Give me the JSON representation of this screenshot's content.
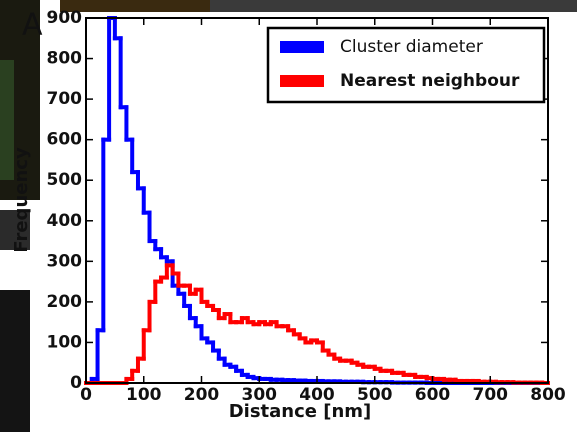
{
  "chart_data": {
    "type": "histogram",
    "panel_label": "A",
    "xlabel": "Distance [nm]",
    "ylabel": "Frequency",
    "bins": [
      0,
      10,
      20,
      30,
      40,
      50,
      60,
      70,
      80,
      90,
      100,
      110,
      120,
      130,
      140,
      150,
      160,
      170,
      180,
      190,
      200,
      210,
      220,
      230,
      240,
      250,
      260,
      270,
      280,
      290,
      300,
      310,
      320,
      330,
      340,
      350,
      360,
      370,
      380,
      390,
      400,
      410,
      420,
      430,
      440,
      450,
      460,
      470,
      480,
      490,
      500,
      510,
      520,
      530,
      540,
      550,
      560,
      570,
      580,
      590,
      600,
      610,
      620,
      630,
      640,
      650,
      660,
      670,
      680,
      690,
      700,
      710,
      720,
      730,
      740,
      750,
      760,
      770,
      780,
      790,
      800
    ],
    "series": [
      {
        "name": "Cluster diameter",
        "color": "#0000ff",
        "values": [
          0,
          10,
          130,
          600,
          900,
          850,
          680,
          600,
          520,
          480,
          420,
          350,
          330,
          310,
          300,
          240,
          220,
          190,
          160,
          140,
          110,
          100,
          80,
          60,
          45,
          40,
          30,
          20,
          15,
          12,
          10,
          10,
          8,
          8,
          7,
          7,
          6,
          6,
          5,
          5,
          5,
          4,
          4,
          4,
          3,
          3,
          3,
          3,
          2,
          2,
          2,
          2,
          2,
          1,
          1,
          1,
          1,
          1,
          1,
          0,
          0,
          0,
          0,
          0,
          0,
          0,
          0,
          0,
          0,
          0,
          0,
          0,
          0,
          0,
          0,
          0,
          0,
          0,
          0,
          0
        ]
      },
      {
        "name": "Nearest neighbour",
        "color": "#ff0000",
        "values": [
          0,
          0,
          0,
          0,
          0,
          0,
          0,
          10,
          30,
          60,
          130,
          200,
          250,
          260,
          290,
          270,
          240,
          240,
          220,
          230,
          200,
          190,
          180,
          160,
          170,
          150,
          150,
          160,
          150,
          145,
          150,
          145,
          150,
          140,
          140,
          130,
          120,
          110,
          100,
          105,
          100,
          80,
          70,
          60,
          55,
          55,
          50,
          45,
          40,
          40,
          35,
          30,
          30,
          25,
          25,
          20,
          20,
          15,
          15,
          12,
          10,
          10,
          8,
          8,
          5,
          5,
          5,
          5,
          3,
          3,
          3,
          2,
          2,
          2,
          1,
          1,
          1,
          1,
          1,
          0
        ]
      }
    ],
    "xlim": [
      0,
      800
    ],
    "ylim": [
      0,
      900
    ],
    "xticks": [
      0,
      100,
      200,
      300,
      400,
      500,
      600,
      700,
      800
    ],
    "yticks": [
      0,
      100,
      200,
      300,
      400,
      500,
      600,
      700,
      800,
      900
    ],
    "legend": "upper right"
  }
}
